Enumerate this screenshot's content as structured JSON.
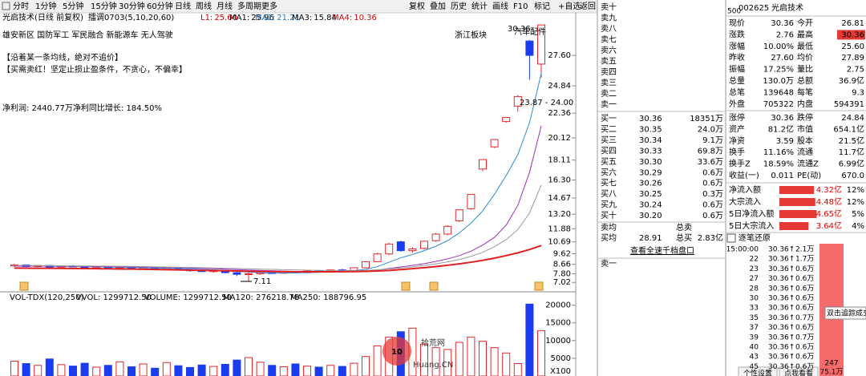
{
  "toolbar": {
    "periods": [
      "分时",
      "1分钟",
      "5分钟",
      "15分钟",
      "30分钟",
      "60分钟",
      "日线",
      "周线",
      "月线",
      "多周期",
      "更多"
    ],
    "buttons": [
      "复权",
      "叠加",
      "历史",
      "统计",
      "画线",
      "F10",
      "标记",
      "+自选",
      "返回"
    ],
    "stock": "光启技术(日线 前复权)",
    "indicator": "擂调0703(5,10,20,60)",
    "legend": [
      {
        "name": "L1:",
        "value": "25.60",
        "color": "#d00000"
      },
      {
        "name": "MA1:",
        "value": "25.96",
        "color": "#000000"
      },
      {
        "name": "MA2:",
        "value": "21.21",
        "color": "#1a7ad0"
      },
      {
        "name": "MA3:",
        "value": "15.84",
        "color": "#000000"
      },
      {
        "name": "MA4:",
        "value": "10.36",
        "color": "#d00000"
      }
    ]
  },
  "chart_data": [
    {
      "type": "candlestick",
      "ylim": [
        6.31,
        30.44
      ],
      "yticks": [
        {
          "value": 27.6,
          "label": "27.60"
        },
        24.84,
        22.36,
        20.12,
        18.11,
        {
          "value": 16.3,
          "label": "16.30"
        },
        14.67,
        {
          "value": 13.2,
          "label": "13.20"
        },
        11.88,
        10.69,
        9.62,
        8.66,
        {
          "value": 7.8,
          "label": "7.80"
        },
        7.02
      ],
      "up_color": "#e8262b",
      "down_color": "#1a3cf0",
      "candles": [
        {
          "open": 8.5,
          "high": 8.7,
          "low": 8.4,
          "close": 8.6
        },
        {
          "open": 8.6,
          "high": 8.65,
          "low": 8.4,
          "close": 8.45
        },
        {
          "open": 8.45,
          "high": 8.6,
          "low": 8.4,
          "close": 8.55
        },
        {
          "open": 8.55,
          "high": 8.6,
          "low": 8.35,
          "close": 8.4
        },
        {
          "open": 8.4,
          "high": 8.55,
          "low": 8.35,
          "close": 8.5
        },
        {
          "open": 8.5,
          "high": 8.6,
          "low": 8.4,
          "close": 8.45
        },
        {
          "open": 8.45,
          "high": 8.5,
          "low": 8.3,
          "close": 8.35
        },
        {
          "open": 8.35,
          "high": 8.5,
          "low": 8.3,
          "close": 8.45
        },
        {
          "open": 8.45,
          "high": 8.5,
          "low": 8.3,
          "close": 8.35
        },
        {
          "open": 8.35,
          "high": 8.45,
          "low": 8.25,
          "close": 8.4
        },
        {
          "open": 8.4,
          "high": 8.45,
          "low": 8.2,
          "close": 8.25
        },
        {
          "open": 8.25,
          "high": 8.4,
          "low": 8.2,
          "close": 8.35
        },
        {
          "open": 8.35,
          "high": 8.4,
          "low": 8.15,
          "close": 8.2
        },
        {
          "open": 8.2,
          "high": 8.35,
          "low": 8.15,
          "close": 8.3
        },
        {
          "open": 8.3,
          "high": 8.35,
          "low": 8.1,
          "close": 8.15
        },
        {
          "open": 8.15,
          "high": 8.25,
          "low": 8.0,
          "close": 8.1
        },
        {
          "open": 8.1,
          "high": 8.2,
          "low": 7.95,
          "close": 8.0
        },
        {
          "open": 8.0,
          "high": 8.15,
          "low": 7.9,
          "close": 8.1
        },
        {
          "open": 8.1,
          "high": 8.15,
          "low": 7.85,
          "close": 7.9
        },
        {
          "open": 7.9,
          "high": 8.0,
          "low": 7.6,
          "close": 7.75
        },
        {
          "open": 7.75,
          "high": 7.9,
          "low": 7.11,
          "close": 7.8
        },
        {
          "open": 7.8,
          "high": 7.95,
          "low": 7.7,
          "close": 7.9
        },
        {
          "open": 7.9,
          "high": 8.0,
          "low": 7.8,
          "close": 7.85
        },
        {
          "open": 7.85,
          "high": 8.05,
          "low": 7.8,
          "close": 8.0
        },
        {
          "open": 8.0,
          "high": 8.05,
          "low": 7.85,
          "close": 7.9
        },
        {
          "open": 7.9,
          "high": 8.1,
          "low": 7.85,
          "close": 8.05
        },
        {
          "open": 8.05,
          "high": 8.15,
          "low": 7.95,
          "close": 8.0
        },
        {
          "open": 8.0,
          "high": 8.2,
          "low": 7.95,
          "close": 8.15
        },
        {
          "open": 8.15,
          "high": 8.25,
          "low": 8.05,
          "close": 8.1
        },
        {
          "open": 8.1,
          "high": 8.4,
          "low": 8.05,
          "close": 8.35
        },
        {
          "open": 8.35,
          "high": 8.95,
          "low": 8.3,
          "close": 8.9
        },
        {
          "open": 8.9,
          "high": 9.7,
          "low": 8.85,
          "close": 9.6
        },
        {
          "open": 9.6,
          "high": 10.6,
          "low": 9.5,
          "close": 10.5
        },
        {
          "open": 10.7,
          "high": 10.8,
          "low": 9.8,
          "close": 9.9
        },
        {
          "open": 9.9,
          "high": 10.2,
          "low": 9.7,
          "close": 10.05
        },
        {
          "open": 10.1,
          "high": 10.8,
          "low": 10.0,
          "close": 10.75
        },
        {
          "open": 10.8,
          "high": 11.5,
          "low": 10.7,
          "close": 11.4
        },
        {
          "open": 11.4,
          "high": 12.2,
          "low": 11.3,
          "close": 12.1
        },
        {
          "open": 12.6,
          "high": 13.6,
          "low": 12.5,
          "close": 13.6
        },
        {
          "open": 13.7,
          "high": 15.0,
          "low": 13.6,
          "close": 15.0
        },
        {
          "open": 17.3,
          "high": 18.2,
          "low": 17.1,
          "close": 18.15
        },
        {
          "open": 19.3,
          "high": 19.97,
          "low": 19.2,
          "close": 19.97
        },
        {
          "open": 21.6,
          "high": 21.97,
          "low": 21.5,
          "close": 21.97
        },
        {
          "open": 23.0,
          "high": 24.0,
          "low": 22.5,
          "close": 23.87
        },
        {
          "open": 28.9,
          "high": 29.0,
          "low": 25.4,
          "close": 27.6
        },
        {
          "open": 26.81,
          "high": 30.36,
          "low": 25.6,
          "close": 30.36
        }
      ],
      "series": [
        {
          "color": "#2b8ad8",
          "width": 1,
          "values": [
            8.5,
            8.5,
            8.5,
            8.48,
            8.47,
            8.47,
            8.45,
            8.43,
            8.42,
            8.4,
            8.38,
            8.35,
            8.32,
            8.3,
            8.27,
            8.23,
            8.19,
            8.15,
            8.1,
            8.02,
            7.95,
            7.9,
            7.88,
            7.87,
            7.88,
            7.9,
            7.93,
            7.98,
            8.02,
            8.08,
            8.2,
            8.45,
            8.85,
            9.25,
            9.55,
            9.9,
            10.3,
            10.8,
            11.5,
            12.4,
            13.5,
            15.0,
            16.7,
            18.6,
            21.5,
            25.96
          ]
        },
        {
          "color": "#9b30c0",
          "width": 1,
          "values": [
            8.5,
            8.5,
            8.5,
            8.5,
            8.49,
            8.48,
            8.47,
            8.46,
            8.45,
            8.44,
            8.43,
            8.41,
            8.39,
            8.37,
            8.35,
            8.32,
            8.29,
            8.26,
            8.22,
            8.18,
            8.14,
            8.1,
            8.07,
            8.04,
            8.02,
            8.0,
            7.99,
            7.99,
            8.0,
            8.02,
            8.06,
            8.15,
            8.28,
            8.42,
            8.56,
            8.72,
            8.92,
            9.15,
            9.45,
            9.85,
            10.4,
            11.1,
            12.2,
            14.0,
            17.0,
            21.21
          ]
        },
        {
          "color": "#9a9a9a",
          "width": 1,
          "values": [
            8.55,
            8.55,
            8.54,
            8.54,
            8.53,
            8.52,
            8.51,
            8.5,
            8.49,
            8.48,
            8.47,
            8.45,
            8.43,
            8.41,
            8.39,
            8.37,
            8.35,
            8.33,
            8.3,
            8.28,
            8.25,
            8.22,
            8.2,
            8.17,
            8.15,
            8.13,
            8.11,
            8.1,
            8.09,
            8.09,
            8.1,
            8.16,
            8.24,
            8.33,
            8.43,
            8.55,
            8.7,
            8.88,
            9.1,
            9.38,
            9.75,
            10.25,
            10.9,
            11.8,
            13.3,
            15.84
          ]
        },
        {
          "color": "#e02020",
          "width": 2,
          "values": [
            8.32,
            8.31,
            8.3,
            8.3,
            8.29,
            8.28,
            8.27,
            8.26,
            8.25,
            8.24,
            8.23,
            8.21,
            8.19,
            8.17,
            8.15,
            8.13,
            8.11,
            8.09,
            8.07,
            8.05,
            8.03,
            8.01,
            8.0,
            7.99,
            7.98,
            7.98,
            7.98,
            7.98,
            7.99,
            8.0,
            8.02,
            8.05,
            8.1,
            8.18,
            8.26,
            8.35,
            8.45,
            8.57,
            8.7,
            8.85,
            9.02,
            9.22,
            9.45,
            9.7,
            10.0,
            10.36
          ]
        }
      ],
      "annotations": [
        "雄安新区 国防军工 军民融合 新能源车 无人驾驶",
        "【沿着某一条均线，绝对不追价】",
        "【买需卖红！坚定止损止盈条件，不贪心，不偏幸】",
        "净利润: 2440.77万净利同比增长: 184.50%",
        "浙江板块",
        "汽车配件",
        "30.36",
        "23.87 - 24.00",
        "7.11"
      ]
    },
    {
      "type": "bar",
      "header": [
        "VOL-TDX(120,250)",
        "VVOL: 1299712.50",
        "VOLUME: 1299712.50",
        "MA120: 276218.78",
        "MA250: 188796.95"
      ],
      "unit": "X100",
      "ylim": [
        0,
        20600
      ],
      "yticks": [
        5000,
        10000,
        15000,
        20000
      ],
      "values": [
        4200,
        3500,
        3000,
        4800,
        3200,
        2800,
        3600,
        2500,
        3000,
        4000,
        2600,
        3400,
        2200,
        3800,
        2900,
        2400,
        3100,
        2700,
        3300,
        4500,
        5200,
        3900,
        3000,
        2600,
        3400,
        2800,
        2500,
        3000,
        2700,
        3600,
        5500,
        8500,
        11000,
        12500,
        13500,
        9000,
        8000,
        7500,
        9500,
        11000,
        9800,
        8000,
        6500,
        3500,
        20300,
        12800
      ]
    }
  ],
  "watermark": {
    "logo": "10",
    "name": "拾荒网",
    "url": "Huang.CN"
  },
  "order_book": {
    "sell": [
      "卖十",
      "卖九",
      "卖八",
      "卖七",
      "卖六",
      "卖五",
      "卖四",
      "卖三",
      "卖二",
      "卖一"
    ],
    "buy": [
      [
        "买一",
        "30.36",
        "18351万"
      ],
      [
        "买二",
        "30.35",
        "24.0万"
      ],
      [
        "买三",
        "30.34",
        "9.1万"
      ],
      [
        "买四",
        "30.33",
        "69.8万"
      ],
      [
        "买五",
        "30.30",
        "33.6万"
      ],
      [
        "买六",
        "30.29",
        "0.6万"
      ],
      [
        "买七",
        "30.26",
        "0.6万"
      ],
      [
        "买八",
        "30.25",
        "0.3万"
      ],
      [
        "买九",
        "30.24",
        "0.6万"
      ],
      [
        "买十",
        "30.20",
        "0.6万"
      ]
    ],
    "sell_avg": "卖均",
    "total_sell": "总卖",
    "buy_avg": "买均",
    "buy_avg_value": "28.91",
    "total_buy": "总买",
    "total_buy_value": "2.83亿",
    "link": "查看全速千档盘口",
    "next": "卖一"
  },
  "quote": {
    "badge": "500",
    "code": "002625",
    "name": "光启技术",
    "rows": [
      [
        "现价",
        "30.36",
        "今开",
        "26.81"
      ],
      [
        "涨跌",
        "2.76",
        "最高",
        "30.36"
      ],
      [
        "涨幅",
        "10.00%",
        "最低",
        "25.60"
      ],
      [
        "昨收",
        "27.60",
        "均价",
        "27.89"
      ],
      [
        "振幅",
        "17.25%",
        "量比",
        "2.75"
      ],
      [
        "总量",
        "130.0万",
        "总额",
        "36.9亿"
      ],
      [
        "总笔",
        "139648",
        "每笔",
        "9.3"
      ],
      [
        "外盘",
        "705322",
        "内盘",
        "594391"
      ]
    ],
    "rows2": [
      [
        "涨停",
        "30.36",
        "跌停",
        "24.84"
      ],
      [
        "资产",
        "81.2亿",
        "市值",
        "654.1亿"
      ],
      [
        "净资",
        "3.59",
        "股本",
        "21.5亿"
      ],
      [
        "换手",
        "11.16%",
        "流通",
        "11.7亿"
      ],
      [
        "换手Z",
        "18.59%",
        "流通Z",
        "6.99亿"
      ],
      [
        "收益(一)",
        "0.011",
        "PE(动)",
        "670.0"
      ]
    ],
    "flows": [
      {
        "label": "净流入额",
        "amount": 4.32,
        "unit": "亿",
        "pct": "12%"
      },
      {
        "label": "大宗流入",
        "amount": 4.48,
        "unit": "亿",
        "pct": "12%"
      },
      {
        "label": "5日净流入额",
        "amount": 4.65,
        "unit": "亿",
        "pct": "5%"
      },
      {
        "label": "5日大宗流入",
        "amount": 3.64,
        "unit": "亿",
        "pct": "4%"
      }
    ]
  },
  "ticks": {
    "title": "逐笔还原",
    "rows": [
      [
        "15:00:00",
        "30.36↑",
        "2.1万"
      ],
      [
        "22",
        "30.36↑",
        "1.7万"
      ],
      [
        "23",
        "30.36↑",
        "0.6万"
      ],
      [
        "27",
        "30.36↑",
        "0.6万"
      ],
      [
        "28",
        "30.36↑",
        "0.6万"
      ],
      [
        "30",
        "30.36↑",
        "0.6万"
      ],
      [
        "33",
        "30.36↑",
        "0.6万"
      ],
      [
        "35",
        "30.36↑",
        "0.7万"
      ],
      [
        "37",
        "30.36↑",
        "0.6万"
      ],
      [
        "39",
        "30.36↑",
        "0.7万"
      ],
      [
        "40",
        "30.36↑",
        "0.6万"
      ],
      [
        "43",
        "30.36↑",
        "0.6万"
      ],
      [
        "45",
        "30.36↑",
        "0.6万"
      ]
    ],
    "count": "247",
    "volume": "75.1万",
    "tooltip": "双击追踪成交",
    "footer": [
      "个性设置",
      "点我看看"
    ]
  }
}
